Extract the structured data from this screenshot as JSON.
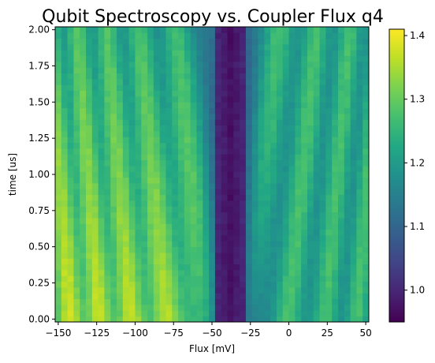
{
  "chart_data": {
    "type": "heatmap",
    "title": "Qubit Spectroscopy vs. Coupler Flux q4",
    "xlabel": "Flux [mV]",
    "ylabel": "time [us]",
    "xlim": [
      -152,
      52
    ],
    "ylim": [
      -0.02,
      2.02
    ],
    "x_ticks": [
      -150,
      -125,
      -100,
      -75,
      -50,
      -25,
      0,
      25,
      50
    ],
    "x_tick_labels": [
      "−150",
      "−125",
      "−100",
      "−75",
      "−50",
      "−25",
      "0",
      "25",
      "50"
    ],
    "y_ticks": [
      0.0,
      0.25,
      0.5,
      0.75,
      1.0,
      1.25,
      1.5,
      1.75,
      2.0
    ],
    "y_tick_labels": [
      "0.00",
      "0.25",
      "0.50",
      "0.75",
      "1.00",
      "1.25",
      "1.50",
      "1.75",
      "2.00"
    ],
    "x_range": [
      -150,
      50
    ],
    "x_step": 4,
    "y_range": [
      0.0,
      2.0
    ],
    "y_step": 0.04,
    "colormap": "viridis",
    "colorbar": {
      "vmin": 0.95,
      "vmax": 1.41,
      "ticks": [
        1.0,
        1.1,
        1.2,
        1.3,
        1.4
      ],
      "tick_labels": [
        "1.0",
        "1.1",
        "1.2",
        "1.3",
        "1.4"
      ]
    },
    "grid": false,
    "value_model": {
      "min_center_flux": -38,
      "value_at_center": 0.97,
      "max_value_far_left_low_time": 1.41,
      "right_side_value_range": [
        1.15,
        1.3
      ],
      "oscillation": "fringes whose spacing increases toward the center flux"
    }
  }
}
